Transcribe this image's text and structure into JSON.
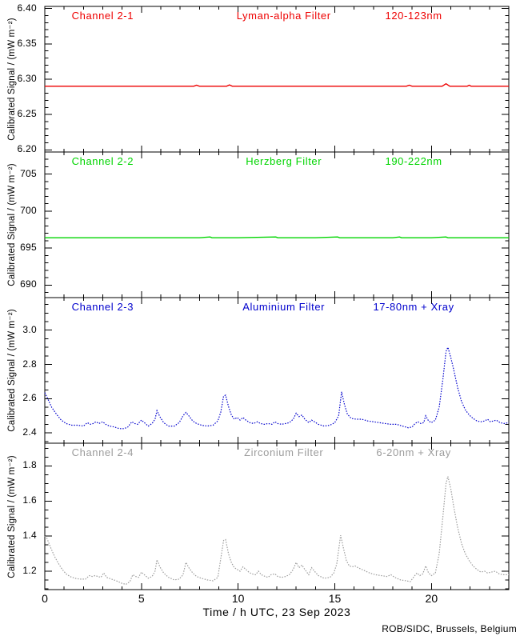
{
  "figure": {
    "xlabel": "Time / h UTC, 23 Sep 2023",
    "credit": "ROB/SIDC, Brussels, Belgium",
    "background": "#ffffff",
    "axis_color": "#000000",
    "x_axis": {
      "min": 0,
      "max": 24,
      "major_ticks": [
        0,
        5,
        10,
        15,
        20
      ],
      "tick_labels": [
        "0",
        "5",
        "10",
        "15",
        "20"
      ],
      "minor_step": 1
    }
  },
  "chart_data": [
    {
      "type": "line",
      "channel": "Channel 2-1",
      "filter": "Lyman-alpha Filter",
      "band": "120-123nm",
      "color": "#ee0000",
      "line_style": "solid",
      "ylabel": "Calibrated Signal / (mW m⁻²)",
      "ylim": [
        6.197,
        6.403
      ],
      "ytick_values": [
        6.2,
        6.25,
        6.3,
        6.35,
        6.4
      ],
      "ytick_labels": [
        "6.20",
        "6.25",
        "6.30",
        "6.35",
        "6.40"
      ],
      "minor_step": 0.01,
      "x": [
        0,
        7.7,
        7.85,
        8.0,
        9.4,
        9.55,
        9.7,
        18.7,
        18.85,
        19.0,
        20.55,
        20.75,
        20.95,
        21.85,
        21.95,
        22.05,
        24
      ],
      "y": [
        6.29,
        6.29,
        6.2915,
        6.29,
        6.29,
        6.292,
        6.29,
        6.29,
        6.2915,
        6.29,
        6.29,
        6.2935,
        6.29,
        6.29,
        6.2915,
        6.29,
        6.29
      ]
    },
    {
      "type": "line",
      "channel": "Channel 2-2",
      "filter": "Herzberg Filter",
      "band": "190-222nm",
      "color": "#00d500",
      "line_style": "solid",
      "ylabel": "Calibrated Signal / (mW m⁻²)",
      "ylim": [
        688.3,
        708.0
      ],
      "ytick_values": [
        690,
        695,
        700,
        705
      ],
      "ytick_labels": [
        "690",
        "695",
        "700",
        "705"
      ],
      "minor_step": 1,
      "x": [
        0,
        2,
        4,
        6,
        8,
        8.55,
        8.65,
        10,
        11.95,
        12.05,
        13,
        14,
        15.15,
        15.25,
        16,
        17,
        18,
        18.35,
        18.45,
        19,
        20,
        20.75,
        20.85,
        22,
        23,
        24
      ],
      "y": [
        696.4,
        696.4,
        696.4,
        696.4,
        696.4,
        696.5,
        696.4,
        696.4,
        696.5,
        696.4,
        696.4,
        696.4,
        696.5,
        696.4,
        696.4,
        696.4,
        696.4,
        696.5,
        696.4,
        696.4,
        696.4,
        696.5,
        696.4,
        696.4,
        696.4,
        696.4
      ]
    },
    {
      "type": "line",
      "channel": "Channel 2-3",
      "filter": "Aluminium Filter",
      "band": "17-80nm + Xray",
      "color": "#0000cd",
      "line_style": "dotted",
      "ylabel": "Calibrated Signal / (mW m⁻²)",
      "ylim": [
        2.34,
        3.19
      ],
      "ytick_values": [
        2.4,
        2.6,
        2.8,
        3.0
      ],
      "ytick_labels": [
        "2.4",
        "2.6",
        "2.8",
        "3.0"
      ],
      "minor_step": 0.05,
      "x": [
        0,
        0.15,
        0.35,
        0.6,
        0.85,
        1.1,
        1.4,
        1.7,
        2.0,
        2.2,
        2.35,
        2.5,
        2.65,
        2.8,
        3.0,
        3.15,
        3.35,
        3.6,
        3.85,
        4.1,
        4.3,
        4.5,
        4.65,
        4.8,
        5.0,
        5.15,
        5.35,
        5.55,
        5.7,
        5.8,
        5.95,
        6.15,
        6.4,
        6.7,
        6.95,
        7.15,
        7.3,
        7.45,
        7.65,
        7.85,
        8.1,
        8.4,
        8.7,
        8.95,
        9.1,
        9.25,
        9.35,
        9.5,
        9.65,
        9.8,
        9.95,
        10.1,
        10.25,
        10.4,
        10.6,
        10.8,
        11.0,
        11.15,
        11.35,
        11.55,
        11.75,
        11.9,
        12.05,
        12.25,
        12.45,
        12.65,
        12.85,
        13.0,
        13.15,
        13.3,
        13.45,
        13.65,
        13.8,
        13.95,
        14.15,
        14.45,
        14.75,
        15.0,
        15.2,
        15.35,
        15.5,
        15.65,
        15.85,
        16.1,
        16.4,
        16.7,
        17.0,
        17.3,
        17.6,
        17.9,
        18.2,
        18.5,
        18.8,
        19.0,
        19.15,
        19.3,
        19.45,
        19.6,
        19.7,
        19.85,
        20.0,
        20.2,
        20.4,
        20.6,
        20.75,
        20.85,
        21.0,
        21.15,
        21.35,
        21.55,
        21.75,
        21.95,
        22.15,
        22.35,
        22.55,
        22.75,
        22.9,
        23.05,
        23.2,
        23.35,
        23.55,
        23.75,
        24.0
      ],
      "y": [
        2.635,
        2.6,
        2.55,
        2.51,
        2.475,
        2.455,
        2.445,
        2.445,
        2.44,
        2.46,
        2.45,
        2.455,
        2.465,
        2.455,
        2.465,
        2.45,
        2.44,
        2.435,
        2.425,
        2.425,
        2.435,
        2.465,
        2.455,
        2.45,
        2.475,
        2.46,
        2.44,
        2.455,
        2.48,
        2.53,
        2.495,
        2.46,
        2.44,
        2.44,
        2.46,
        2.5,
        2.52,
        2.5,
        2.47,
        2.455,
        2.445,
        2.44,
        2.445,
        2.47,
        2.52,
        2.615,
        2.62,
        2.555,
        2.505,
        2.48,
        2.49,
        2.475,
        2.49,
        2.475,
        2.46,
        2.455,
        2.465,
        2.455,
        2.45,
        2.455,
        2.45,
        2.465,
        2.455,
        2.45,
        2.455,
        2.46,
        2.48,
        2.515,
        2.495,
        2.505,
        2.48,
        2.46,
        2.475,
        2.465,
        2.45,
        2.44,
        2.445,
        2.46,
        2.5,
        2.64,
        2.565,
        2.51,
        2.485,
        2.48,
        2.48,
        2.47,
        2.465,
        2.46,
        2.455,
        2.45,
        2.45,
        2.44,
        2.43,
        2.435,
        2.455,
        2.465,
        2.455,
        2.46,
        2.5,
        2.47,
        2.46,
        2.475,
        2.55,
        2.72,
        2.875,
        2.9,
        2.84,
        2.77,
        2.665,
        2.585,
        2.535,
        2.505,
        2.485,
        2.47,
        2.465,
        2.47,
        2.48,
        2.465,
        2.47,
        2.475,
        2.46,
        2.455,
        2.46
      ]
    },
    {
      "type": "line",
      "channel": "Channel 2-4",
      "filter": "Zirconium Filter",
      "band": "6-20nm + Xray",
      "color": "#9c9c9c",
      "line_style": "dotted",
      "ylabel": "Calibrated Signal / (mW m⁻²)",
      "ylim": [
        1.095,
        1.93
      ],
      "ytick_values": [
        1.2,
        1.4,
        1.6,
        1.8
      ],
      "ytick_labels": [
        "1.2",
        "1.4",
        "1.6",
        "1.8"
      ],
      "minor_step": 0.05,
      "x": [
        0,
        0.12,
        0.3,
        0.5,
        0.7,
        0.9,
        1.1,
        1.3,
        1.55,
        1.8,
        2.1,
        2.3,
        2.45,
        2.6,
        2.75,
        2.9,
        3.05,
        3.2,
        3.45,
        3.7,
        4.0,
        4.2,
        4.4,
        4.55,
        4.7,
        4.85,
        5.0,
        5.15,
        5.35,
        5.55,
        5.7,
        5.8,
        5.95,
        6.15,
        6.4,
        6.7,
        6.95,
        7.15,
        7.3,
        7.45,
        7.65,
        7.85,
        8.1,
        8.4,
        8.7,
        8.95,
        9.1,
        9.25,
        9.35,
        9.5,
        9.65,
        9.8,
        9.95,
        10.1,
        10.25,
        10.4,
        10.55,
        10.7,
        10.9,
        11.05,
        11.2,
        11.4,
        11.55,
        11.7,
        11.9,
        12.05,
        12.25,
        12.45,
        12.65,
        12.85,
        13.0,
        13.15,
        13.3,
        13.45,
        13.65,
        13.8,
        13.95,
        14.15,
        14.45,
        14.75,
        14.95,
        15.1,
        15.3,
        15.45,
        15.6,
        15.75,
        15.9,
        16.05,
        16.2,
        16.5,
        16.8,
        17.1,
        17.4,
        17.7,
        17.9,
        18.1,
        18.4,
        18.7,
        18.9,
        19.1,
        19.25,
        19.4,
        19.55,
        19.7,
        19.85,
        20.0,
        20.2,
        20.4,
        20.6,
        20.75,
        20.85,
        21.0,
        21.15,
        21.35,
        21.55,
        21.75,
        21.95,
        22.15,
        22.35,
        22.55,
        22.75,
        22.9,
        23.1,
        23.3,
        23.5,
        23.7,
        24.0
      ],
      "y": [
        1.4,
        1.385,
        1.335,
        1.285,
        1.245,
        1.21,
        1.185,
        1.17,
        1.16,
        1.155,
        1.155,
        1.175,
        1.17,
        1.175,
        1.17,
        1.165,
        1.19,
        1.165,
        1.155,
        1.145,
        1.13,
        1.125,
        1.14,
        1.18,
        1.17,
        1.165,
        1.195,
        1.18,
        1.16,
        1.17,
        1.2,
        1.265,
        1.225,
        1.19,
        1.165,
        1.15,
        1.155,
        1.18,
        1.25,
        1.22,
        1.19,
        1.17,
        1.16,
        1.15,
        1.145,
        1.165,
        1.27,
        1.375,
        1.38,
        1.3,
        1.25,
        1.22,
        1.21,
        1.2,
        1.225,
        1.21,
        1.195,
        1.185,
        1.18,
        1.2,
        1.18,
        1.17,
        1.165,
        1.18,
        1.185,
        1.17,
        1.165,
        1.17,
        1.18,
        1.21,
        1.25,
        1.22,
        1.235,
        1.21,
        1.18,
        1.22,
        1.2,
        1.175,
        1.16,
        1.165,
        1.19,
        1.24,
        1.405,
        1.33,
        1.26,
        1.23,
        1.225,
        1.23,
        1.22,
        1.205,
        1.19,
        1.18,
        1.175,
        1.17,
        1.18,
        1.165,
        1.15,
        1.145,
        1.14,
        1.17,
        1.19,
        1.175,
        1.185,
        1.23,
        1.19,
        1.175,
        1.19,
        1.3,
        1.52,
        1.7,
        1.74,
        1.67,
        1.57,
        1.45,
        1.36,
        1.3,
        1.26,
        1.23,
        1.21,
        1.195,
        1.2,
        1.19,
        1.195,
        1.2,
        1.185,
        1.18,
        1.18
      ]
    }
  ]
}
